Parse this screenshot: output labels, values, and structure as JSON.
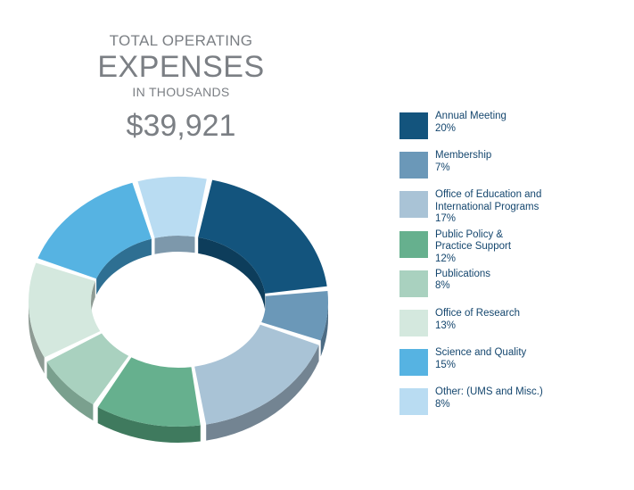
{
  "header": {
    "line1": "TOTAL OPERATING",
    "line2": "EXPENSES",
    "line3": "IN THOUSANDS",
    "total": "$39,921"
  },
  "chart_data": {
    "type": "pie",
    "categories": [
      "Annual Meeting",
      "Membership",
      "Office of Education and International Programs",
      "Public Policy & Practice Support",
      "Publications",
      "Office of Research",
      "Science and Quality",
      "Other: (UMS and Misc.)"
    ],
    "values": [
      20,
      7,
      17,
      12,
      8,
      13,
      15,
      8
    ],
    "value_labels": [
      "20%",
      "7%",
      "17%",
      "12%",
      "8%",
      "13%",
      "15%",
      "8%"
    ],
    "label_lines": [
      [
        "Annual Meeting"
      ],
      [
        "Membership"
      ],
      [
        "Office of Education and",
        "International Programs"
      ],
      [
        "Public Policy &",
        "Practice Support"
      ],
      [
        "Publications"
      ],
      [
        "Office of Research"
      ],
      [
        "Science and Quality"
      ],
      [
        "Other: (UMS and Misc.)"
      ]
    ],
    "colors": [
      "#13547d",
      "#6b98b8",
      "#a9c3d6",
      "#66b08e",
      "#a9d1bf",
      "#d4e8de",
      "#56b3e2",
      "#b9dcf2"
    ],
    "side_colors": [
      "#0d3d5b",
      "#4c6c84",
      "#738492",
      "#3f7a5e",
      "#7aa08e",
      "#8e9b94",
      "#2e6f92",
      "#7d98ab"
    ],
    "legend_placement": "right"
  }
}
